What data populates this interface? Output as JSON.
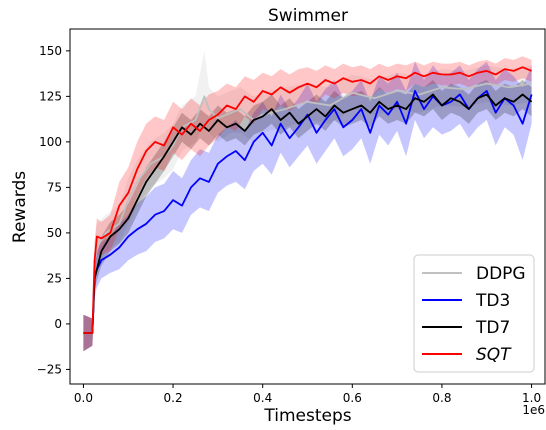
{
  "chart_data": {
    "type": "line",
    "title": "Swimmer",
    "xlabel": "Timesteps",
    "ylabel": "Rewards",
    "x_offset_label": "1e6",
    "xlim": [
      -0.03,
      1.03
    ],
    "ylim": [
      -33,
      162
    ],
    "xticks": [
      0.0,
      0.2,
      0.4,
      0.6,
      0.8,
      1.0
    ],
    "xtick_labels": [
      "0.0",
      "0.2",
      "0.4",
      "0.6",
      "0.8",
      "1.0"
    ],
    "yticks": [
      -25,
      0,
      25,
      50,
      75,
      100,
      125,
      150
    ],
    "ytick_labels": [
      "−25",
      "0",
      "25",
      "50",
      "75",
      "100",
      "125",
      "150"
    ],
    "grid": false,
    "legend_position": "lower-right",
    "series": [
      {
        "name": "DDPG",
        "color": "#c0c0c0",
        "italic": false,
        "x": [
          0.0,
          0.02,
          0.025,
          0.03,
          0.05,
          0.08,
          0.1,
          0.12,
          0.15,
          0.18,
          0.2,
          0.22,
          0.25,
          0.27,
          0.28,
          0.3,
          0.33,
          0.35,
          0.38,
          0.4,
          0.45,
          0.5,
          0.55,
          0.6,
          0.65,
          0.7,
          0.75,
          0.8,
          0.85,
          0.9,
          0.95,
          1.0
        ],
        "y": [
          -5,
          -5,
          35,
          42,
          50,
          55,
          68,
          78,
          88,
          92,
          98,
          108,
          112,
          125,
          118,
          113,
          116,
          118,
          112,
          115,
          118,
          122,
          120,
          127,
          124,
          128,
          126,
          130,
          129,
          132,
          130,
          132
        ],
        "band": [
          [
            -15,
            5
          ],
          [
            -12,
            3
          ],
          [
            20,
            45
          ],
          [
            30,
            55
          ],
          [
            40,
            60
          ],
          [
            45,
            65
          ],
          [
            55,
            80
          ],
          [
            65,
            90
          ],
          [
            75,
            100
          ],
          [
            80,
            105
          ],
          [
            85,
            110
          ],
          [
            95,
            120
          ],
          [
            100,
            125
          ],
          [
            110,
            150
          ],
          [
            105,
            130
          ],
          [
            100,
            125
          ],
          [
            105,
            128
          ],
          [
            105,
            130
          ],
          [
            100,
            125
          ],
          [
            105,
            127
          ],
          [
            108,
            130
          ],
          [
            112,
            132
          ],
          [
            110,
            130
          ],
          [
            118,
            137
          ],
          [
            115,
            134
          ],
          [
            118,
            138
          ],
          [
            116,
            136
          ],
          [
            120,
            140
          ],
          [
            119,
            139
          ],
          [
            122,
            142
          ],
          [
            120,
            140
          ],
          [
            122,
            142
          ]
        ]
      },
      {
        "name": "TD3",
        "color": "#0000ff",
        "italic": false,
        "x": [
          0.0,
          0.02,
          0.025,
          0.03,
          0.04,
          0.06,
          0.08,
          0.1,
          0.12,
          0.14,
          0.16,
          0.18,
          0.2,
          0.22,
          0.24,
          0.26,
          0.28,
          0.3,
          0.32,
          0.34,
          0.36,
          0.38,
          0.4,
          0.42,
          0.44,
          0.46,
          0.48,
          0.5,
          0.52,
          0.54,
          0.56,
          0.58,
          0.6,
          0.62,
          0.64,
          0.66,
          0.68,
          0.7,
          0.72,
          0.74,
          0.76,
          0.78,
          0.8,
          0.82,
          0.84,
          0.86,
          0.88,
          0.9,
          0.92,
          0.94,
          0.96,
          0.98,
          1.0
        ],
        "y": [
          -5,
          -5,
          25,
          30,
          35,
          38,
          42,
          48,
          52,
          55,
          60,
          62,
          68,
          65,
          75,
          80,
          78,
          88,
          92,
          95,
          90,
          100,
          105,
          98,
          110,
          102,
          108,
          115,
          105,
          112,
          118,
          108,
          112,
          118,
          105,
          120,
          115,
          122,
          110,
          128,
          118,
          125,
          120,
          122,
          126,
          118,
          124,
          128,
          116,
          124,
          120,
          110,
          126
        ],
        "band": [
          [
            -15,
            5
          ],
          [
            -12,
            3
          ],
          [
            15,
            35
          ],
          [
            20,
            40
          ],
          [
            25,
            45
          ],
          [
            28,
            48
          ],
          [
            30,
            55
          ],
          [
            35,
            60
          ],
          [
            38,
            66
          ],
          [
            40,
            70
          ],
          [
            45,
            75
          ],
          [
            47,
            77
          ],
          [
            52,
            84
          ],
          [
            50,
            80
          ],
          [
            60,
            90
          ],
          [
            64,
            96
          ],
          [
            62,
            94
          ],
          [
            72,
            104
          ],
          [
            76,
            108
          ],
          [
            78,
            112
          ],
          [
            74,
            106
          ],
          [
            84,
            116
          ],
          [
            88,
            122
          ],
          [
            82,
            114
          ],
          [
            94,
            126
          ],
          [
            86,
            118
          ],
          [
            92,
            124
          ],
          [
            98,
            132
          ],
          [
            88,
            122
          ],
          [
            95,
            129
          ],
          [
            102,
            134
          ],
          [
            92,
            124
          ],
          [
            96,
            128
          ],
          [
            102,
            134
          ],
          [
            88,
            122
          ],
          [
            104,
            136
          ],
          [
            98,
            132
          ],
          [
            106,
            138
          ],
          [
            92,
            128
          ],
          [
            112,
            144
          ],
          [
            102,
            134
          ],
          [
            108,
            142
          ],
          [
            104,
            136
          ],
          [
            106,
            138
          ],
          [
            110,
            142
          ],
          [
            102,
            134
          ],
          [
            108,
            140
          ],
          [
            112,
            144
          ],
          [
            98,
            134
          ],
          [
            108,
            140
          ],
          [
            104,
            136
          ],
          [
            90,
            130
          ],
          [
            110,
            142
          ]
        ]
      },
      {
        "name": "TD7",
        "color": "#000000",
        "italic": false,
        "x": [
          0.0,
          0.02,
          0.025,
          0.03,
          0.04,
          0.06,
          0.08,
          0.1,
          0.12,
          0.14,
          0.16,
          0.18,
          0.2,
          0.22,
          0.24,
          0.26,
          0.28,
          0.3,
          0.32,
          0.34,
          0.36,
          0.38,
          0.4,
          0.42,
          0.44,
          0.46,
          0.48,
          0.5,
          0.52,
          0.54,
          0.56,
          0.58,
          0.6,
          0.62,
          0.64,
          0.66,
          0.68,
          0.7,
          0.72,
          0.74,
          0.76,
          0.78,
          0.8,
          0.82,
          0.84,
          0.86,
          0.88,
          0.9,
          0.92,
          0.94,
          0.96,
          0.98,
          1.0
        ],
        "y": [
          -5,
          -5,
          25,
          30,
          40,
          48,
          52,
          58,
          68,
          78,
          85,
          92,
          100,
          108,
          104,
          110,
          106,
          112,
          108,
          110,
          106,
          112,
          114,
          118,
          112,
          116,
          110,
          114,
          118,
          114,
          120,
          116,
          118,
          120,
          116,
          122,
          118,
          120,
          118,
          124,
          122,
          126,
          120,
          124,
          122,
          118,
          124,
          126,
          120,
          124,
          122,
          126,
          122
        ],
        "band": [
          [
            -15,
            5
          ],
          [
            -12,
            3
          ],
          [
            18,
            32
          ],
          [
            24,
            38
          ],
          [
            32,
            48
          ],
          [
            40,
            56
          ],
          [
            44,
            60
          ],
          [
            50,
            66
          ],
          [
            60,
            76
          ],
          [
            70,
            86
          ],
          [
            77,
            93
          ],
          [
            84,
            100
          ],
          [
            92,
            108
          ],
          [
            100,
            116
          ],
          [
            96,
            112
          ],
          [
            102,
            118
          ],
          [
            98,
            114
          ],
          [
            104,
            120
          ],
          [
            100,
            116
          ],
          [
            102,
            118
          ],
          [
            98,
            114
          ],
          [
            104,
            120
          ],
          [
            106,
            122
          ],
          [
            110,
            126
          ],
          [
            104,
            120
          ],
          [
            108,
            124
          ],
          [
            102,
            118
          ],
          [
            106,
            122
          ],
          [
            110,
            126
          ],
          [
            106,
            122
          ],
          [
            112,
            128
          ],
          [
            108,
            124
          ],
          [
            110,
            126
          ],
          [
            112,
            128
          ],
          [
            108,
            124
          ],
          [
            114,
            130
          ],
          [
            110,
            126
          ],
          [
            112,
            128
          ],
          [
            110,
            126
          ],
          [
            116,
            132
          ],
          [
            114,
            130
          ],
          [
            118,
            134
          ],
          [
            112,
            128
          ],
          [
            116,
            132
          ],
          [
            114,
            130
          ],
          [
            110,
            126
          ],
          [
            116,
            132
          ],
          [
            118,
            134
          ],
          [
            112,
            128
          ],
          [
            116,
            132
          ],
          [
            114,
            130
          ],
          [
            118,
            134
          ],
          [
            114,
            130
          ]
        ]
      },
      {
        "name": "SQT",
        "color": "#ff0000",
        "italic": true,
        "x": [
          0.0,
          0.02,
          0.025,
          0.03,
          0.04,
          0.06,
          0.08,
          0.1,
          0.12,
          0.14,
          0.16,
          0.18,
          0.2,
          0.22,
          0.24,
          0.26,
          0.28,
          0.3,
          0.32,
          0.34,
          0.36,
          0.38,
          0.4,
          0.42,
          0.44,
          0.46,
          0.48,
          0.5,
          0.52,
          0.54,
          0.56,
          0.58,
          0.6,
          0.62,
          0.64,
          0.66,
          0.68,
          0.7,
          0.72,
          0.74,
          0.76,
          0.78,
          0.8,
          0.82,
          0.84,
          0.86,
          0.88,
          0.9,
          0.92,
          0.94,
          0.96,
          0.98,
          1.0
        ],
        "y": [
          -5,
          -5,
          35,
          48,
          47,
          50,
          65,
          72,
          85,
          95,
          100,
          98,
          108,
          104,
          110,
          106,
          112,
          115,
          120,
          118,
          125,
          122,
          128,
          126,
          130,
          127,
          130,
          132,
          130,
          134,
          132,
          135,
          133,
          134,
          132,
          136,
          134,
          136,
          135,
          138,
          136,
          138,
          137,
          137,
          138,
          136,
          138,
          139,
          137,
          140,
          139,
          141,
          139
        ],
        "band": [
          [
            -15,
            5
          ],
          [
            -12,
            3
          ],
          [
            25,
            45
          ],
          [
            38,
            58
          ],
          [
            38,
            56
          ],
          [
            40,
            60
          ],
          [
            52,
            78
          ],
          [
            58,
            86
          ],
          [
            70,
            100
          ],
          [
            80,
            110
          ],
          [
            86,
            114
          ],
          [
            84,
            112
          ],
          [
            94,
            122
          ],
          [
            90,
            118
          ],
          [
            96,
            124
          ],
          [
            92,
            120
          ],
          [
            98,
            126
          ],
          [
            102,
            128
          ],
          [
            108,
            132
          ],
          [
            106,
            130
          ],
          [
            114,
            136
          ],
          [
            110,
            134
          ],
          [
            118,
            138
          ],
          [
            116,
            136
          ],
          [
            120,
            140
          ],
          [
            117,
            137
          ],
          [
            120,
            140
          ],
          [
            123,
            141
          ],
          [
            121,
            139
          ],
          [
            126,
            142
          ],
          [
            124,
            140
          ],
          [
            127,
            143
          ],
          [
            125,
            141
          ],
          [
            126,
            142
          ],
          [
            124,
            140
          ],
          [
            129,
            143
          ],
          [
            127,
            141
          ],
          [
            129,
            143
          ],
          [
            128,
            142
          ],
          [
            132,
            144
          ],
          [
            130,
            142
          ],
          [
            132,
            144
          ],
          [
            131,
            143
          ],
          [
            131,
            143
          ],
          [
            132,
            144
          ],
          [
            130,
            142
          ],
          [
            132,
            144
          ],
          [
            133,
            145
          ],
          [
            131,
            143
          ],
          [
            134,
            146
          ],
          [
            133,
            145
          ],
          [
            135,
            147
          ],
          [
            133,
            145
          ]
        ]
      }
    ]
  }
}
